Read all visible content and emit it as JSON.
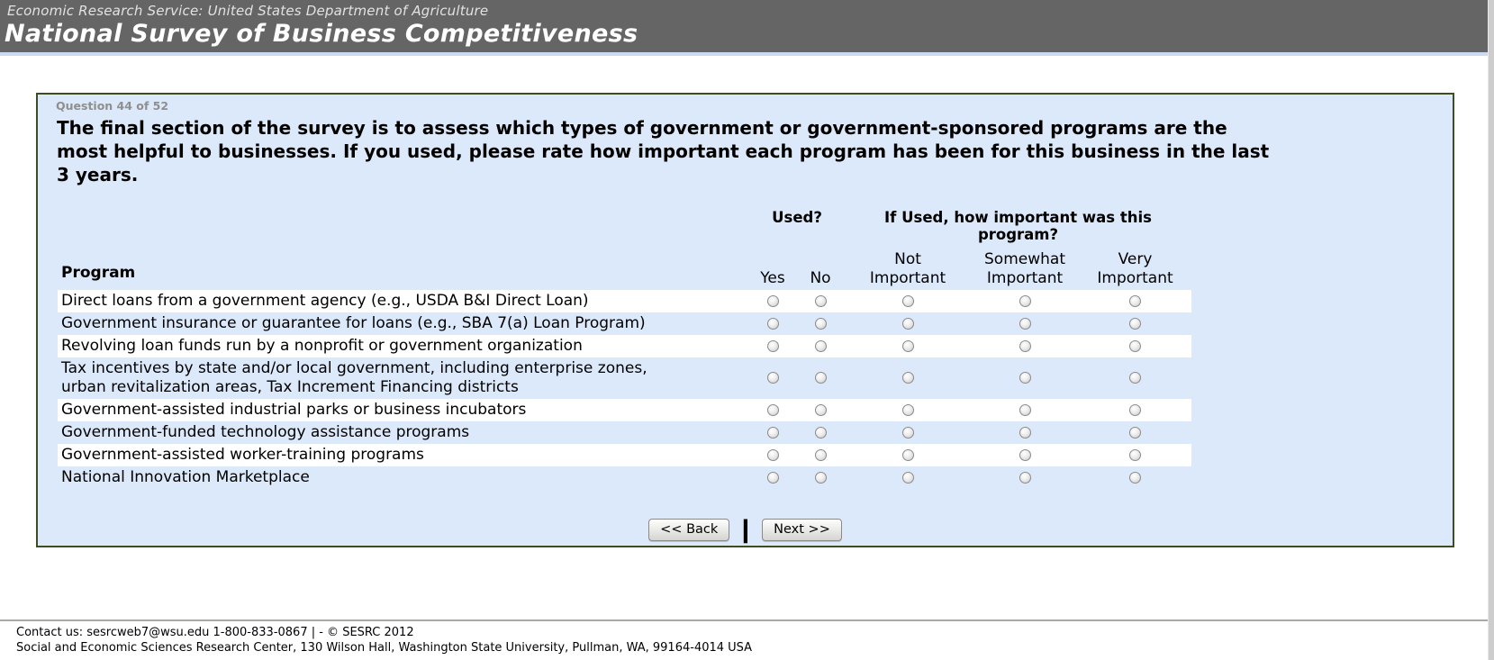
{
  "header": {
    "agency_line": "Economic Research Service: United States Department of Agriculture",
    "title": "National Survey of Business Competitiveness"
  },
  "question": {
    "progress": "Question 44 of 52",
    "text": "The final section of the survey is to assess which types of government or government-sponsored programs are the\nmost helpful to businesses. If you used, please rate how important each program has been for this business in the last\n3 years."
  },
  "table": {
    "program_header": "Program",
    "used_header": "Used?",
    "importance_header": "If Used, how important was this program?",
    "used_options": [
      "Yes",
      "No"
    ],
    "importance_options": [
      "Not Important",
      "Somewhat Important",
      "Very Important"
    ],
    "rows": [
      "Direct loans from a government agency (e.g., USDA B&I Direct Loan)",
      "Government insurance or guarantee for loans (e.g., SBA 7(a) Loan Program)",
      "Revolving loan funds run by a nonprofit or government organization",
      "Tax incentives by state and/or local government, including enterprise zones,\nurban revitalization areas, Tax Increment Financing districts",
      "Government-assisted industrial parks or business incubators",
      "Government-funded technology assistance programs",
      "Government-assisted worker-training programs",
      "National Innovation Marketplace"
    ]
  },
  "buttons": {
    "back": "<< Back",
    "separator": "|",
    "next": "Next >>"
  },
  "footer": {
    "line1": "Contact us: sesrcweb7@wsu.edu 1-800-833-0867 | - © SESRC 2012",
    "line2": "Social and Economic Sciences Research Center, 130 Wilson Hall, Washington State University, Pullman, WA, 99164-4014 USA"
  },
  "colors": {
    "header_bg": "#656565",
    "header_underline": "#c9dbf2",
    "panel_bg": "#dce9fa",
    "panel_border": "#3d4d1f",
    "row_stripe": "#ffffff"
  }
}
